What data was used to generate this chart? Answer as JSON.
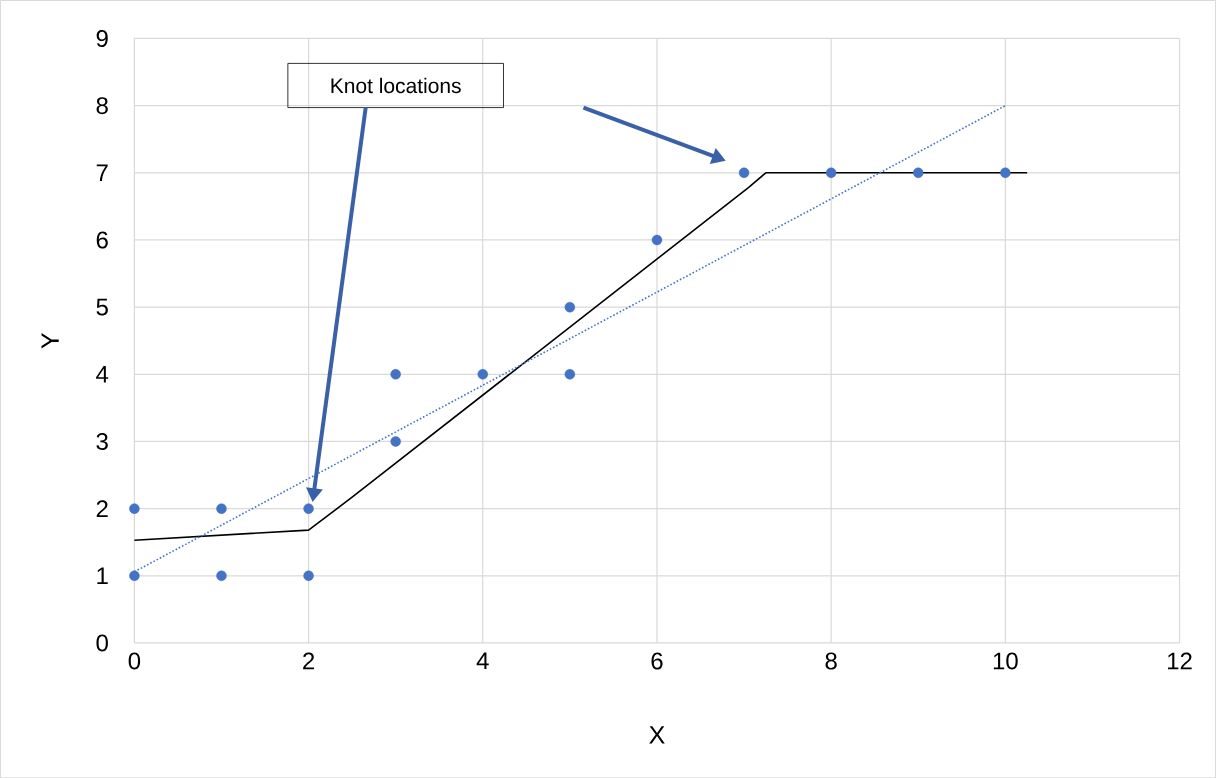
{
  "chart_data": {
    "type": "scatter",
    "xlabel": "X",
    "ylabel": "Y",
    "xlim": [
      0,
      12
    ],
    "ylim": [
      0,
      9
    ],
    "xticks": [
      0,
      2,
      4,
      6,
      8,
      10,
      12
    ],
    "yticks": [
      0,
      1,
      2,
      3,
      4,
      5,
      6,
      7,
      8,
      9
    ],
    "grid": true,
    "annotations": [
      "Knot locations"
    ],
    "series": [
      {
        "type": "scatter",
        "color": "#4472c4",
        "marker": "circle",
        "x": [
          0,
          0,
          1,
          1,
          2,
          2,
          3,
          3,
          4,
          5,
          5,
          6,
          7,
          8,
          9,
          10
        ],
        "values": [
          2,
          1,
          2,
          1,
          2,
          1,
          4,
          3,
          4,
          5,
          4,
          6,
          7,
          7,
          7,
          7
        ]
      },
      {
        "type": "line",
        "color": "#000000",
        "marker": "none",
        "line_style": "solid",
        "x": [
          0,
          2,
          2.5,
          7.05,
          7.25,
          10.25
        ],
        "values": [
          1.53,
          1.68,
          2.17,
          6.78,
          7,
          7
        ]
      },
      {
        "type": "line",
        "color": "#4472c4",
        "marker": "none",
        "line_style": "dotted",
        "x": [
          0,
          10
        ],
        "values": [
          1.06,
          8
        ]
      }
    ]
  }
}
